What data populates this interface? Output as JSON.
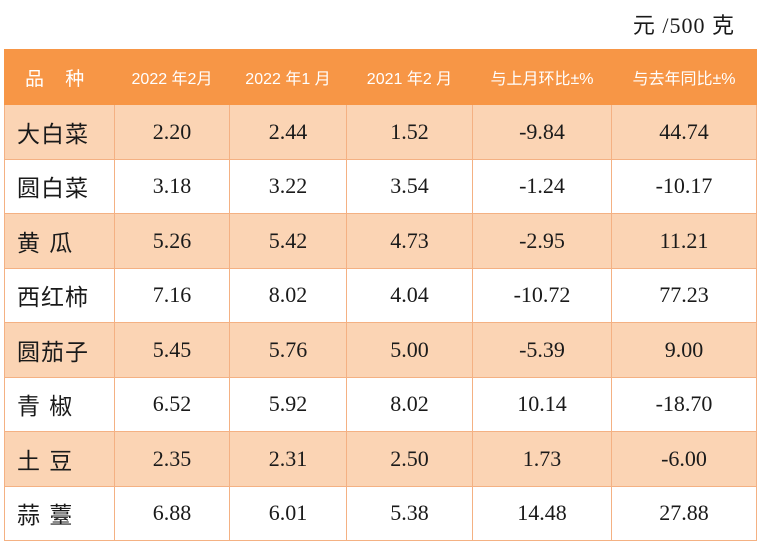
{
  "unit_label": "元 /500 克",
  "header": {
    "name": "品 种",
    "col1": "2022 年2月",
    "col2": "2022 年1 月",
    "col3": "2021 年2 月",
    "col4": "与上月环比±%",
    "col5": "与去年同比±%"
  },
  "rows": [
    {
      "name": "大白菜",
      "v1": "2.20",
      "v2": "2.44",
      "v3": "1.52",
      "v4": "-9.84",
      "v5": "44.74"
    },
    {
      "name": "圆白菜",
      "v1": "3.18",
      "v2": "3.22",
      "v3": "3.54",
      "v4": "-1.24",
      "v5": "-10.17"
    },
    {
      "name": "黄 瓜",
      "v1": "5.26",
      "v2": "5.42",
      "v3": "4.73",
      "v4": "-2.95",
      "v5": "11.21"
    },
    {
      "name": "西红柿",
      "v1": "7.16",
      "v2": "8.02",
      "v3": "4.04",
      "v4": "-10.72",
      "v5": "77.23"
    },
    {
      "name": "圆茄子",
      "v1": "5.45",
      "v2": "5.76",
      "v3": "5.00",
      "v4": "-5.39",
      "v5": "9.00"
    },
    {
      "name": "青 椒",
      "v1": "6.52",
      "v2": "5.92",
      "v3": "8.02",
      "v4": "10.14",
      "v5": "-18.70"
    },
    {
      "name": "土 豆",
      "v1": "2.35",
      "v2": "2.31",
      "v3": "2.50",
      "v4": "1.73",
      "v5": "-6.00"
    },
    {
      "name": "蒜 薹",
      "v1": "6.88",
      "v2": "6.01",
      "v3": "5.38",
      "v4": "14.48",
      "v5": "27.88"
    }
  ],
  "colors": {
    "header_bg": "#f79646",
    "band_bg": "#fbd4b4",
    "border": "#f4b183"
  }
}
